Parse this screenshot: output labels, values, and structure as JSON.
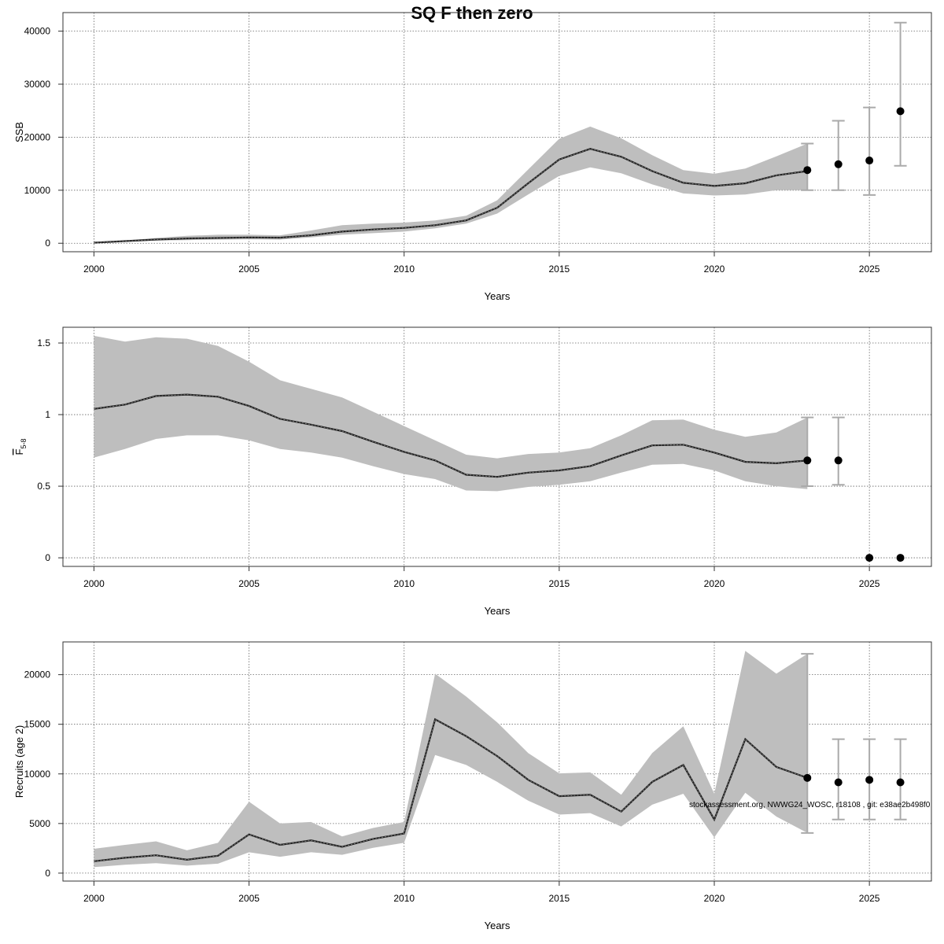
{
  "chart_data": {
    "title": "SQ F then zero",
    "footnote": "stockassessment.org, NWWG24_WOSC, r18108 , git: e38ae2b498f0",
    "grid": true,
    "panels": [
      {
        "id": "ssb",
        "type": "line",
        "ylabel": "SSB",
        "ylabel_sub": "",
        "xlabel": "Years",
        "xlim": [
          1999,
          2027
        ],
        "ylim": [
          -1600,
          43500
        ],
        "xticks": [
          2000,
          2005,
          2010,
          2015,
          2020,
          2025
        ],
        "yticks": [
          0,
          10000,
          20000,
          30000,
          40000
        ],
        "x": [
          2000,
          2001,
          2002,
          2003,
          2004,
          2005,
          2006,
          2007,
          2008,
          2009,
          2010,
          2011,
          2012,
          2013,
          2014,
          2015,
          2016,
          2017,
          2018,
          2019,
          2020,
          2021,
          2022,
          2023
        ],
        "estimate": [
          100,
          400,
          700,
          900,
          1000,
          1100,
          1050,
          1500,
          2200,
          2600,
          2900,
          3400,
          4300,
          6700,
          11300,
          15800,
          17800,
          16300,
          13600,
          11400,
          10800,
          11300,
          12800,
          13600
        ],
        "lower": [
          50,
          250,
          500,
          600,
          700,
          750,
          700,
          1100,
          1600,
          1900,
          2200,
          2800,
          3700,
          5600,
          9200,
          12700,
          14300,
          13200,
          11100,
          9400,
          9000,
          9200,
          10000,
          10000
        ],
        "upper": [
          200,
          500,
          1000,
          1400,
          1600,
          1600,
          1500,
          2400,
          3400,
          3700,
          3900,
          4300,
          5200,
          8100,
          13900,
          19700,
          22000,
          19800,
          16600,
          13800,
          13100,
          14100,
          16400,
          18800
        ],
        "forecast": {
          "x": [
            2023,
            2024,
            2025,
            2026
          ],
          "median": [
            13800,
            14900,
            15600,
            24900
          ],
          "low": [
            10000,
            10000,
            9100,
            14600
          ],
          "high": [
            18800,
            23100,
            25600,
            41600
          ]
        }
      },
      {
        "id": "fbar",
        "type": "line",
        "ylabel": "F",
        "ylabel_sub": "5-8",
        "xlabel": "Years",
        "xlim": [
          1999,
          2027
        ],
        "ylim": [
          -0.06,
          1.61
        ],
        "xticks": [
          2000,
          2005,
          2010,
          2015,
          2020,
          2025
        ],
        "yticks": [
          0.0,
          0.5,
          1.0,
          1.5
        ],
        "x": [
          2000,
          2001,
          2002,
          2003,
          2004,
          2005,
          2006,
          2007,
          2008,
          2009,
          2010,
          2011,
          2012,
          2013,
          2014,
          2015,
          2016,
          2017,
          2018,
          2019,
          2020,
          2021,
          2022,
          2023
        ],
        "estimate": [
          1.04,
          1.07,
          1.13,
          1.14,
          1.125,
          1.06,
          0.97,
          0.93,
          0.885,
          0.81,
          0.74,
          0.68,
          0.58,
          0.565,
          0.595,
          0.61,
          0.64,
          0.715,
          0.785,
          0.79,
          0.735,
          0.67,
          0.66,
          0.68
        ],
        "lower": [
          0.7,
          0.76,
          0.83,
          0.855,
          0.855,
          0.82,
          0.76,
          0.735,
          0.7,
          0.64,
          0.585,
          0.55,
          0.47,
          0.465,
          0.495,
          0.51,
          0.535,
          0.595,
          0.65,
          0.655,
          0.61,
          0.535,
          0.5,
          0.48
        ],
        "upper": [
          1.55,
          1.51,
          1.54,
          1.53,
          1.48,
          1.37,
          1.24,
          1.18,
          1.12,
          1.02,
          0.92,
          0.82,
          0.72,
          0.695,
          0.725,
          0.735,
          0.765,
          0.855,
          0.96,
          0.965,
          0.895,
          0.845,
          0.875,
          0.98
        ],
        "forecast": {
          "x": [
            2023,
            2024,
            2025,
            2026
          ],
          "median": [
            0.68,
            0.68,
            0.0,
            0.0
          ],
          "low": [
            0.5,
            0.51,
            0.0,
            0.0
          ],
          "high": [
            0.98,
            0.98,
            0.0,
            0.0
          ]
        }
      },
      {
        "id": "rec",
        "type": "line",
        "ylabel": "Recruits (age 2)",
        "ylabel_sub": "",
        "xlabel": "Years",
        "xlim": [
          1999,
          2027
        ],
        "ylim": [
          -800,
          23300
        ],
        "xticks": [
          2000,
          2005,
          2010,
          2015,
          2020,
          2025
        ],
        "yticks": [
          0,
          5000,
          10000,
          15000,
          20000
        ],
        "x": [
          2000,
          2001,
          2002,
          2003,
          2004,
          2005,
          2006,
          2007,
          2008,
          2009,
          2010,
          2011,
          2012,
          2013,
          2014,
          2015,
          2016,
          2017,
          2018,
          2019,
          2020,
          2021,
          2022,
          2023
        ],
        "estimate": [
          1200,
          1550,
          1800,
          1350,
          1750,
          3900,
          2850,
          3300,
          2650,
          3450,
          4000,
          15500,
          13800,
          11800,
          9400,
          7750,
          7900,
          6200,
          9200,
          10900,
          5400,
          13500,
          10700,
          9600
        ],
        "lower": [
          600,
          850,
          1000,
          750,
          950,
          2100,
          1650,
          2100,
          1850,
          2550,
          3050,
          11900,
          10900,
          9200,
          7300,
          5900,
          6050,
          4700,
          6900,
          8000,
          3600,
          8100,
          5700,
          4050
        ],
        "upper": [
          2450,
          2850,
          3200,
          2300,
          3050,
          7200,
          5000,
          5150,
          3700,
          4550,
          5150,
          20100,
          17800,
          15200,
          12100,
          10050,
          10150,
          7900,
          12100,
          14800,
          8000,
          22400,
          20100,
          22100
        ],
        "forecast": {
          "x": [
            2023,
            2024,
            2025,
            2026
          ],
          "median": [
            9600,
            9150,
            9400,
            9150
          ],
          "low": [
            4050,
            5400,
            5400,
            5400
          ],
          "high": [
            22100,
            13500,
            13500,
            13500
          ]
        }
      }
    ]
  }
}
